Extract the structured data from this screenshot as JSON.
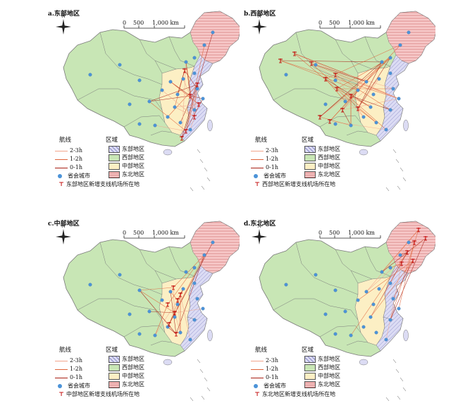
{
  "panels": [
    {
      "id": "a",
      "title": "a.东部地区",
      "airport_label": "东部地区新增支线机场所在地",
      "accent": "#c00000"
    },
    {
      "id": "b",
      "title": "b.西部地区",
      "airport_label": "西部地区新增支线机场所在地",
      "accent": "#c00000"
    },
    {
      "id": "c",
      "title": "c.中部地区",
      "airport_label": "中部地区新增支线机场所在地",
      "accent": "#c00000"
    },
    {
      "id": "d",
      "title": "d.东北地区",
      "airport_label": "东北地区新增支线机场所在地",
      "accent": "#c00000"
    }
  ],
  "legend": {
    "routes_header": "航线",
    "route_classes": [
      {
        "label": "2-3h",
        "color": "#f2a58c"
      },
      {
        "label": "1-2h",
        "color": "#e0643a"
      },
      {
        "label": "0-1h",
        "color": "#a81e12"
      }
    ],
    "capital_label": "省会城市",
    "region_header": "区域",
    "regions": [
      {
        "label": "东部地区",
        "fill": "#dcdcf4"
      },
      {
        "label": "西部地区",
        "fill": "#c8e6b5"
      },
      {
        "label": "中部地区",
        "fill": "#fcefc4"
      },
      {
        "label": "东北地区",
        "fill": "#f7c9c9"
      }
    ]
  },
  "scale": {
    "zero": "0",
    "mid": "500",
    "end": "1,000 km"
  },
  "north": "N",
  "colors": {
    "capital": "#4c93d8",
    "border": "#7a7a7a",
    "airport": "#c00000"
  },
  "icons": {
    "north": "north-arrow-icon",
    "capital": "circle-icon",
    "airport": "airport-marker-icon"
  }
}
